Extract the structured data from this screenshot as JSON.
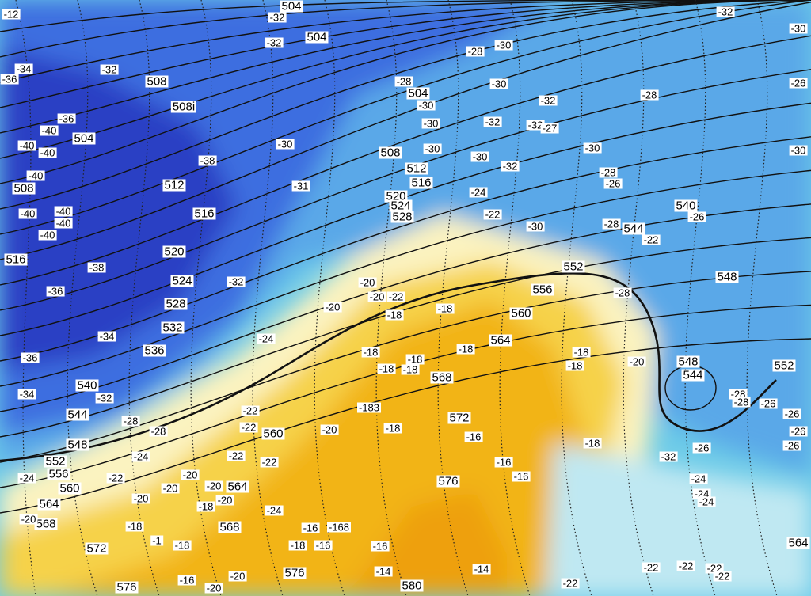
{
  "map": {
    "type": "geopotential-500hPa-and-temperature-chart",
    "colors": {
      "deep_blue": "#2b3fc4",
      "blue": "#3d6ee0",
      "light_blue": "#5aa8e8",
      "cyan": "#6ccbe8",
      "pale_cyan": "#bfe8f2",
      "pale_yellow": "#fbf3c0",
      "yellow": "#f6d24a",
      "orange": "#f2b418",
      "deep_orange": "#eea010"
    },
    "height_labels": [
      "504",
      "504",
      "508",
      "508i",
      "504",
      "512",
      "516",
      "508",
      "516",
      "520",
      "524",
      "528",
      "532",
      "536",
      "540",
      "544",
      "548",
      "552",
      "556",
      "560",
      "564",
      "568",
      "572",
      "576",
      "580",
      "576",
      "568",
      "564",
      "560",
      "568",
      "572",
      "576",
      "564",
      "560",
      "556",
      "552",
      "544",
      "540",
      "548",
      "552",
      "548",
      "544",
      "564",
      "512",
      "516",
      "508",
      "504",
      "520",
      "524",
      "528"
    ],
    "temperature_labels": [
      "-32",
      "-32",
      "-34",
      "-32",
      "-36",
      "-36",
      "-40",
      "-40",
      "-40",
      "-40",
      "-40",
      "-40",
      "-40",
      "-40",
      "-38",
      "-38",
      "-36",
      "-34",
      "-36",
      "-34",
      "-32",
      "-30",
      "-31",
      "-32",
      "-28",
      "-30",
      "-30",
      "-30",
      "-32",
      "-32",
      "-27",
      "-32",
      "-30",
      "-28",
      "-30",
      "-28",
      "-32",
      "-30",
      "-30",
      "-28",
      "-26",
      "-30",
      "-32",
      "-24",
      "-22",
      "-30",
      "-28",
      "-22",
      "-26",
      "-28",
      "-20",
      "-18",
      "-18",
      "-20",
      "-20",
      "-22",
      "-20",
      "-18",
      "-18",
      "-18",
      "-18",
      "-18",
      "-18",
      "-18",
      "-24",
      "-183",
      "-18",
      "-20",
      "-22",
      "-22",
      "-22",
      "-22",
      "-28",
      "-28",
      "-24",
      "-22",
      "-24",
      "-20",
      "-20",
      "-20",
      "-20",
      "-20",
      "-18",
      "-20",
      "-24",
      "-18",
      "-1",
      "-18",
      "-16",
      "-168",
      "-18",
      "-16",
      "-16",
      "-14",
      "-14",
      "-16",
      "-16",
      "-16",
      "-18",
      "-32",
      "-26",
      "-28",
      "-28",
      "-26",
      "-26",
      "-26",
      "-26",
      "-24",
      "-24",
      "-24",
      "-22",
      "-22",
      "-22",
      "-22",
      "-22",
      "-16",
      "-20",
      "-20",
      "-26",
      "-30",
      "-12"
    ]
  }
}
